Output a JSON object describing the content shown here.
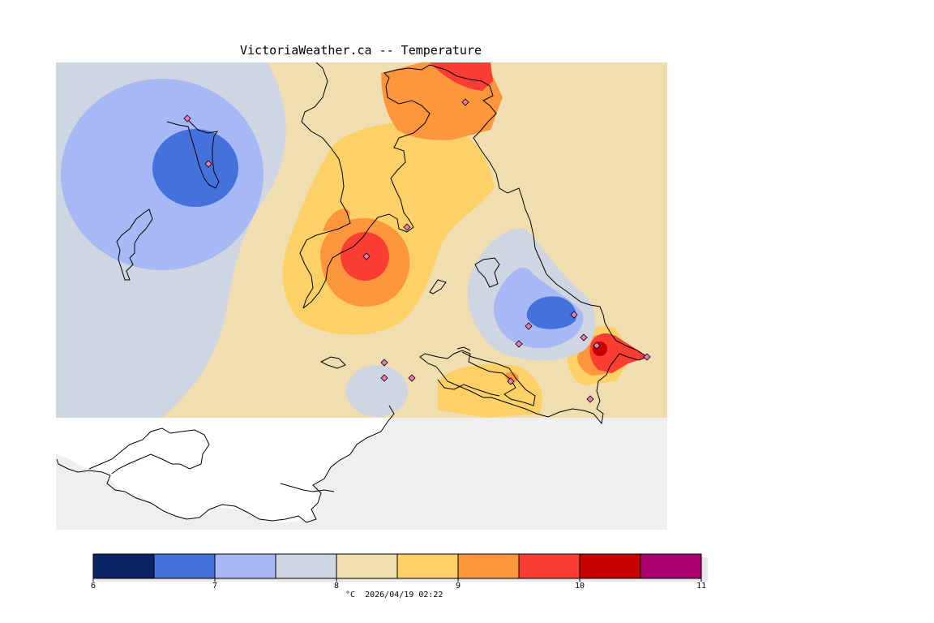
{
  "header": {
    "title": "VictoriaWeather.ca -- Temperature"
  },
  "legend": {
    "unit": "°C",
    "timestamp": "2026/04/19 02:22",
    "ticks": [
      "6",
      "7",
      "8",
      "9",
      "10",
      "11"
    ],
    "bins": [
      {
        "from": 6.0,
        "to": 6.5,
        "color": "#0b2466"
      },
      {
        "from": 6.5,
        "to": 7.0,
        "color": "#4571dc"
      },
      {
        "from": 7.0,
        "to": 7.5,
        "color": "#a6b9f5"
      },
      {
        "from": 7.5,
        "to": 8.0,
        "color": "#d0d5e2"
      },
      {
        "from": 8.0,
        "to": 8.5,
        "color": "#f0deb0"
      },
      {
        "from": 8.5,
        "to": 9.0,
        "color": "#fdd166"
      },
      {
        "from": 9.0,
        "to": 9.5,
        "color": "#fd963c"
      },
      {
        "from": 9.5,
        "to": 10.0,
        "color": "#fb3e34"
      },
      {
        "from": 10.0,
        "to": 10.5,
        "color": "#c60000"
      },
      {
        "from": 10.5,
        "to": 11.0,
        "color": "#a8006f"
      }
    ]
  },
  "colors": {
    "no_data": "#efefef",
    "coastline": "#000000",
    "station_marker": "#f07ab8"
  }
}
